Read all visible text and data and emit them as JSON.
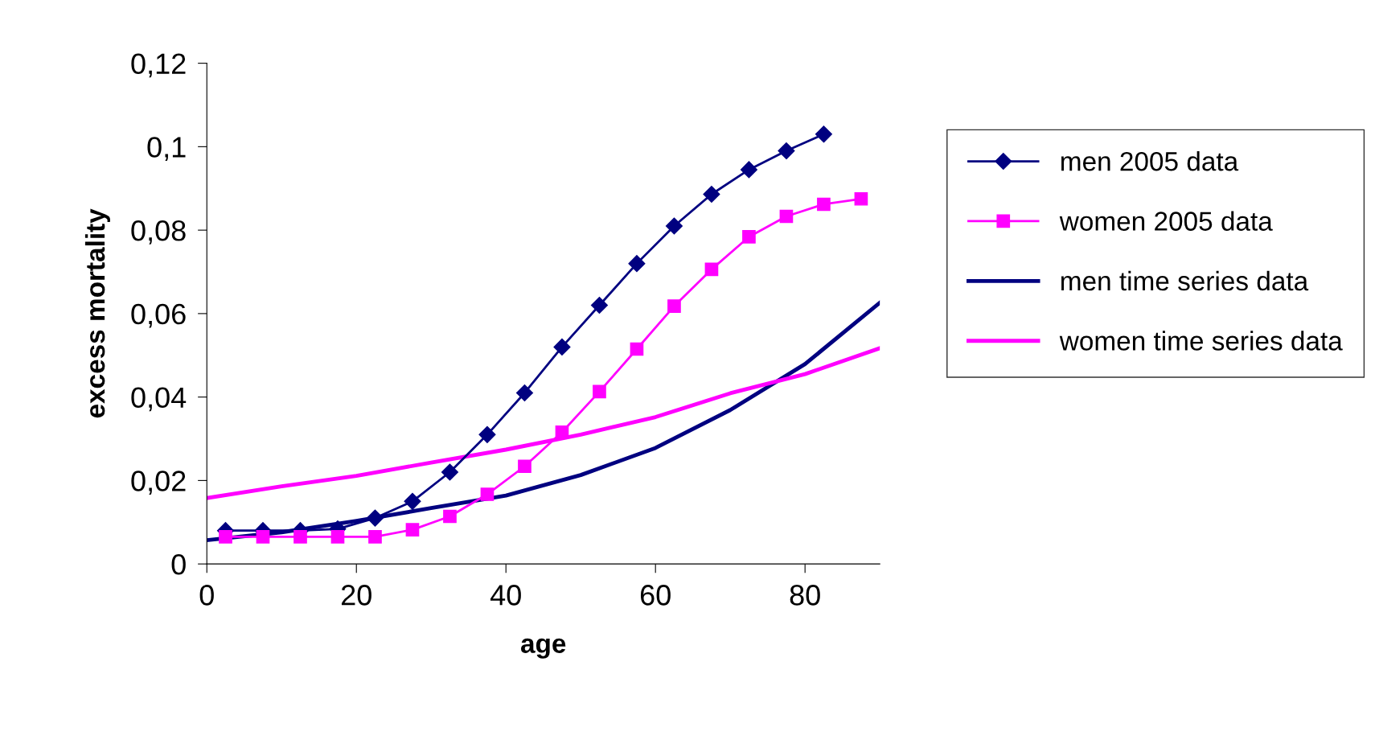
{
  "chart_data": {
    "type": "line",
    "xlabel": "age",
    "ylabel": "excess mortality",
    "xlim": [
      0,
      90
    ],
    "xticks": [
      0,
      20,
      40,
      60,
      80
    ],
    "ylim": [
      0,
      0.12
    ],
    "yticks": [
      {
        "value": 0,
        "label": "0"
      },
      {
        "value": 0.02,
        "label": "0,02"
      },
      {
        "value": 0.04,
        "label": "0,04"
      },
      {
        "value": 0.06,
        "label": "0,06"
      },
      {
        "value": 0.08,
        "label": "0,08"
      },
      {
        "value": 0.1,
        "label": "0,1"
      },
      {
        "value": 0.12,
        "label": "0,12"
      }
    ],
    "grid": false,
    "legend": "right",
    "series": [
      {
        "name": "men 2005 data",
        "color": "#000080",
        "marker": "diamond",
        "x": [
          2.5,
          7.5,
          12.5,
          17.5,
          22.5,
          27.5,
          32.5,
          37.5,
          42.5,
          47.5,
          52.5,
          57.5,
          62.5,
          67.5,
          72.5,
          77.5,
          82.5
        ],
        "values": [
          0.008,
          0.008,
          0.008,
          0.0084,
          0.011,
          0.015,
          0.022,
          0.031,
          0.041,
          0.052,
          0.062,
          0.072,
          0.081,
          0.0886,
          0.0945,
          0.099,
          0.103
        ]
      },
      {
        "name": "women 2005 data",
        "color": "#ff00ff",
        "marker": "square",
        "x": [
          2.5,
          7.5,
          12.5,
          17.5,
          22.5,
          27.5,
          32.5,
          37.5,
          42.5,
          47.5,
          52.5,
          57.5,
          62.5,
          67.5,
          72.5,
          77.5,
          82.5,
          87.5
        ],
        "values": [
          0.0065,
          0.0065,
          0.0065,
          0.0065,
          0.0065,
          0.0082,
          0.0114,
          0.0167,
          0.0234,
          0.0316,
          0.0413,
          0.0515,
          0.0618,
          0.0706,
          0.0784,
          0.0833,
          0.0862,
          0.0875
        ]
      },
      {
        "name": "men time series data",
        "color": "#000080",
        "marker": "none",
        "x": [
          0,
          10,
          20,
          30,
          40,
          50,
          60,
          70,
          80,
          90
        ],
        "values": [
          0.0057,
          0.0076,
          0.0103,
          0.0134,
          0.0164,
          0.0213,
          0.0278,
          0.0369,
          0.0479,
          0.0626
        ]
      },
      {
        "name": "women time series data",
        "color": "#ff00ff",
        "marker": "none",
        "x": [
          0,
          10,
          20,
          30,
          40,
          50,
          60,
          70,
          80,
          90
        ],
        "values": [
          0.0158,
          0.0186,
          0.0211,
          0.0243,
          0.0274,
          0.031,
          0.0352,
          0.0409,
          0.0455,
          0.0517
        ]
      }
    ]
  }
}
